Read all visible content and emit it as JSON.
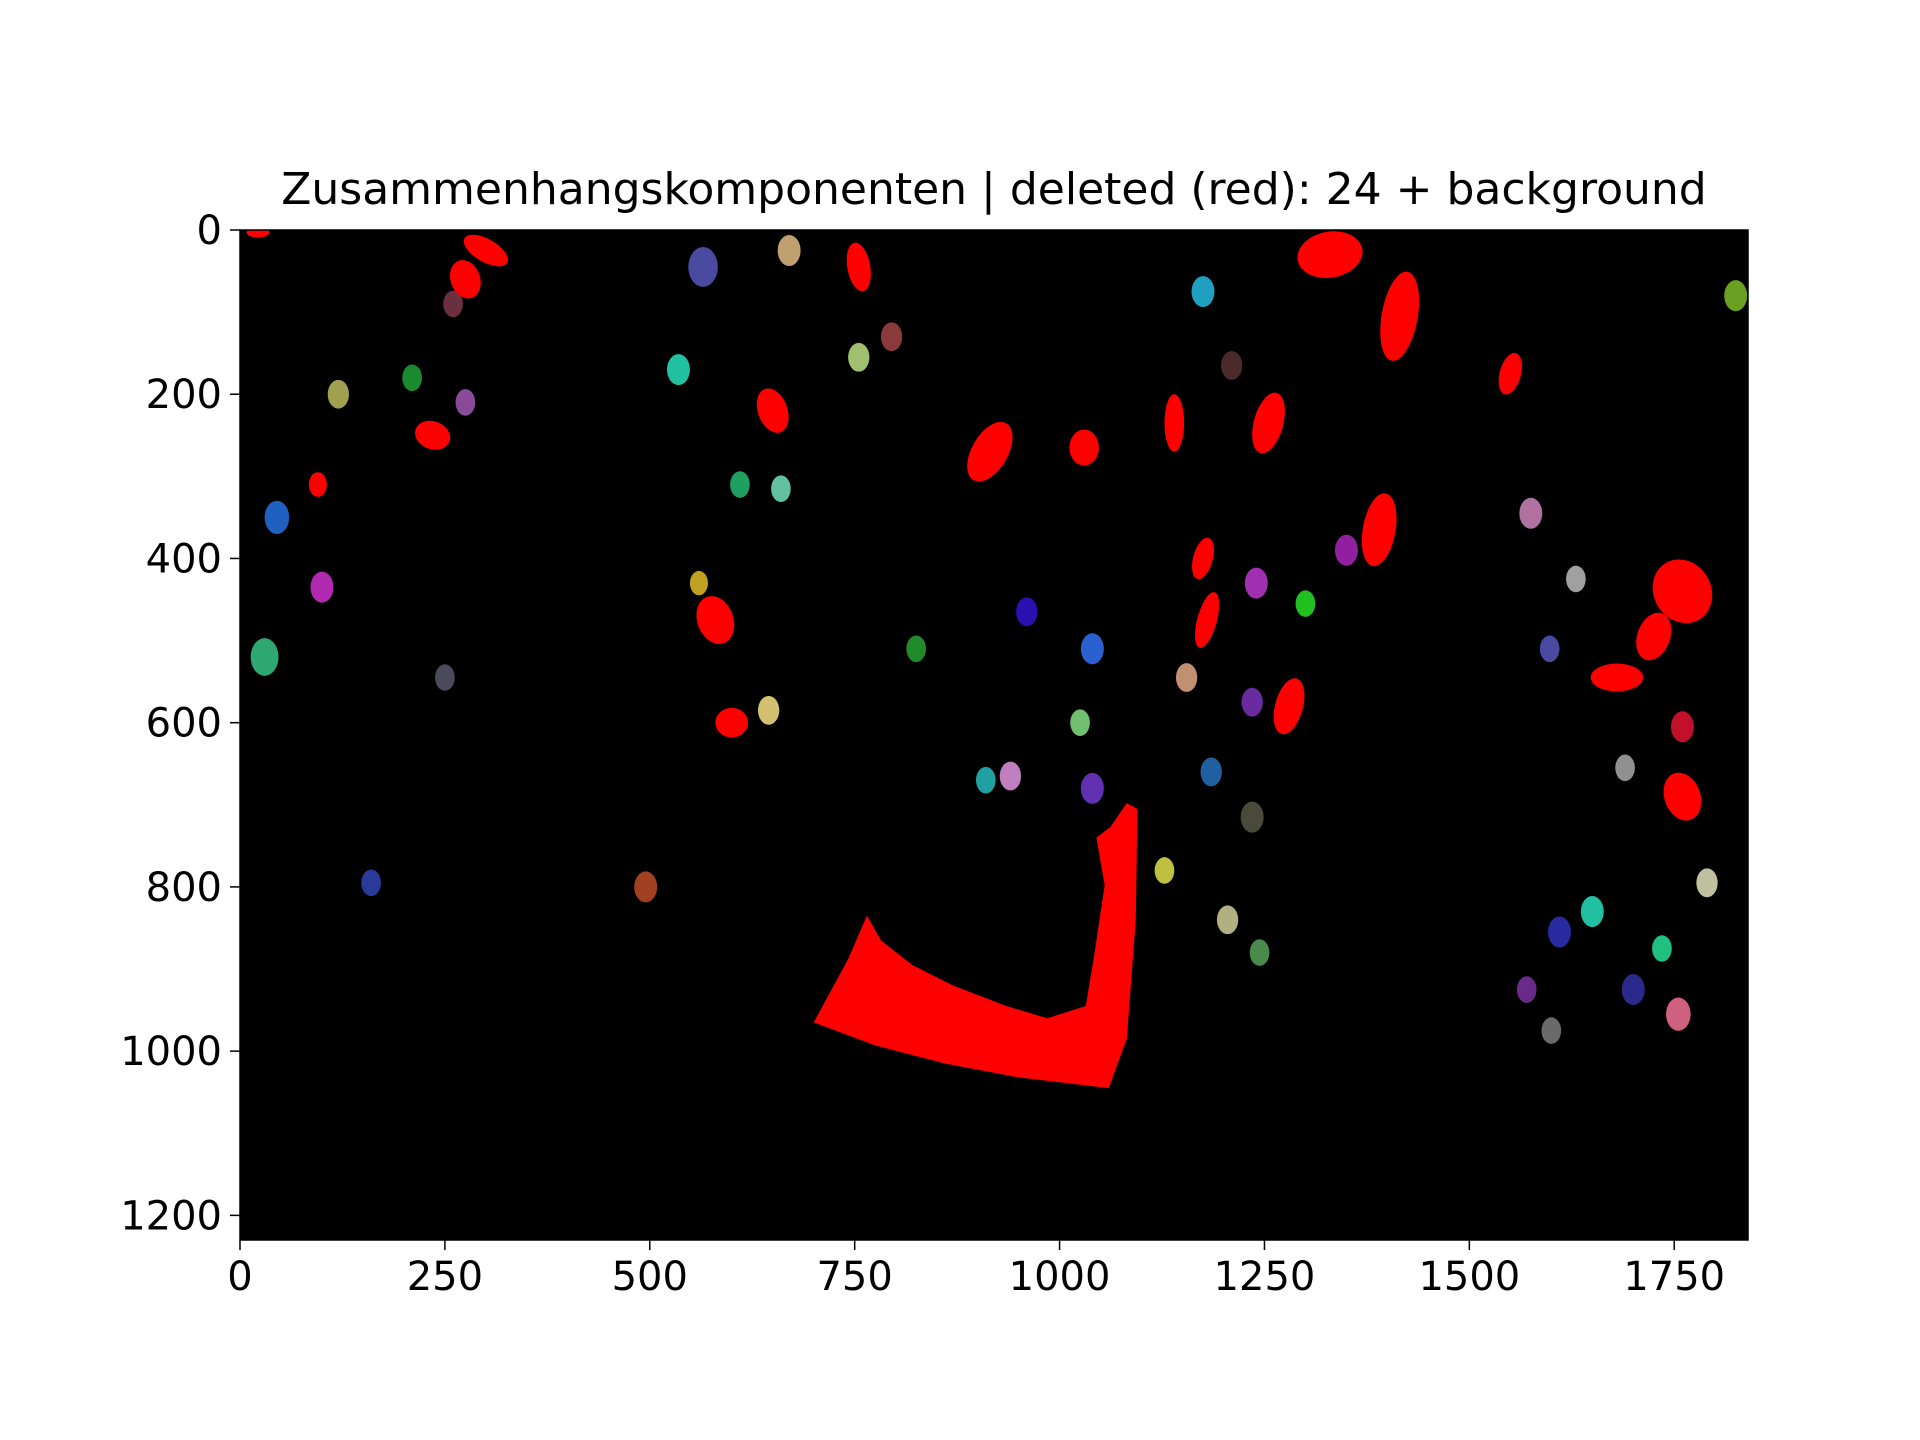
{
  "colors": {
    "figure_background": "#ffffff",
    "image_background": "#000000",
    "deleted": "#ff0000",
    "axis": "#000000"
  },
  "chart_data": {
    "type": "image",
    "title": "Zusammenhangskomponenten | deleted (red): 24 + background",
    "xlabel": "",
    "ylabel": "",
    "xlim": [
      0,
      1840
    ],
    "ylim": [
      1230,
      0
    ],
    "x_ticks": [
      0,
      250,
      500,
      750,
      1000,
      1250,
      1500,
      1750
    ],
    "y_ticks": [
      0,
      200,
      400,
      600,
      800,
      1000,
      1200
    ],
    "x_tick_labels": [
      "0",
      "250",
      "500",
      "750",
      "1000",
      "1250",
      "1500",
      "1750"
    ],
    "y_tick_labels": [
      "0",
      "200",
      "400",
      "600",
      "800",
      "1000",
      "1200"
    ],
    "grid": false,
    "legend": "none",
    "deleted_component_count": 24,
    "deleted_components": [
      {
        "cx": 22,
        "cy": 3,
        "rx": 14,
        "ry": 6,
        "angle": 0
      },
      {
        "cx": 275,
        "cy": 60,
        "rx": 18,
        "ry": 24,
        "angle": -20
      },
      {
        "cx": 300,
        "cy": 25,
        "rx": 30,
        "ry": 14,
        "angle": 30
      },
      {
        "cx": 235,
        "cy": 250,
        "rx": 22,
        "ry": 17,
        "angle": 20
      },
      {
        "cx": 755,
        "cy": 45,
        "rx": 14,
        "ry": 30,
        "angle": -10
      },
      {
        "cx": 650,
        "cy": 220,
        "rx": 18,
        "ry": 28,
        "angle": -20
      },
      {
        "cx": 915,
        "cy": 270,
        "rx": 22,
        "ry": 40,
        "angle": 30
      },
      {
        "cx": 1030,
        "cy": 265,
        "rx": 18,
        "ry": 22,
        "angle": 0
      },
      {
        "cx": 1330,
        "cy": 30,
        "rx": 40,
        "ry": 28,
        "angle": -10
      },
      {
        "cx": 1415,
        "cy": 105,
        "rx": 22,
        "ry": 55,
        "angle": 10
      },
      {
        "cx": 1550,
        "cy": 175,
        "rx": 13,
        "ry": 26,
        "angle": 15
      },
      {
        "cx": 1390,
        "cy": 365,
        "rx": 20,
        "ry": 45,
        "angle": 10
      },
      {
        "cx": 1255,
        "cy": 235,
        "rx": 18,
        "ry": 38,
        "angle": 15
      },
      {
        "cx": 1140,
        "cy": 235,
        "rx": 12,
        "ry": 35,
        "angle": 0
      },
      {
        "cx": 1175,
        "cy": 400,
        "rx": 12,
        "ry": 26,
        "angle": 15
      },
      {
        "cx": 1180,
        "cy": 475,
        "rx": 12,
        "ry": 35,
        "angle": 15
      },
      {
        "cx": 1280,
        "cy": 580,
        "rx": 17,
        "ry": 35,
        "angle": 15
      },
      {
        "cx": 1760,
        "cy": 440,
        "rx": 35,
        "ry": 40,
        "angle": -30
      },
      {
        "cx": 1725,
        "cy": 495,
        "rx": 20,
        "ry": 30,
        "angle": 20
      },
      {
        "cx": 1680,
        "cy": 545,
        "rx": 32,
        "ry": 17,
        "angle": 0
      },
      {
        "cx": 1760,
        "cy": 690,
        "rx": 22,
        "ry": 30,
        "angle": -20
      },
      {
        "cx": 95,
        "cy": 310,
        "rx": 11,
        "ry": 15,
        "angle": 0
      },
      {
        "cx": 580,
        "cy": 475,
        "rx": 22,
        "ry": 30,
        "angle": -20
      },
      {
        "cx": 600,
        "cy": 600,
        "rx": 20,
        "ry": 18,
        "angle": 0
      }
    ],
    "large_deleted_region": [
      [
        700,
        965
      ],
      [
        742,
        888
      ],
      [
        765,
        835
      ],
      [
        782,
        865
      ],
      [
        820,
        895
      ],
      [
        870,
        920
      ],
      [
        935,
        945
      ],
      [
        985,
        960
      ],
      [
        1032,
        945
      ],
      [
        1042,
        885
      ],
      [
        1055,
        798
      ],
      [
        1045,
        740
      ],
      [
        1062,
        727
      ],
      [
        1082,
        698
      ],
      [
        1095,
        705
      ],
      [
        1093,
        840
      ],
      [
        1082,
        985
      ],
      [
        1060,
        1045
      ],
      [
        950,
        1032
      ],
      [
        860,
        1015
      ],
      [
        775,
        993
      ]
    ],
    "kept_components": [
      {
        "cx": 210,
        "cy": 180,
        "r": 12,
        "color": "#1a8a2e"
      },
      {
        "cx": 120,
        "cy": 200,
        "r": 13,
        "color": "#a0a050"
      },
      {
        "cx": 45,
        "cy": 350,
        "r": 15,
        "color": "#2060c0"
      },
      {
        "cx": 275,
        "cy": 210,
        "r": 12,
        "color": "#8a4a9a"
      },
      {
        "cx": 260,
        "cy": 90,
        "r": 12,
        "color": "#6a3040"
      },
      {
        "cx": 30,
        "cy": 520,
        "r": 17,
        "color": "#2ea870"
      },
      {
        "cx": 100,
        "cy": 435,
        "r": 14,
        "color": "#b02ab0"
      },
      {
        "cx": 160,
        "cy": 795,
        "r": 12,
        "color": "#2a3a9a"
      },
      {
        "cx": 565,
        "cy": 45,
        "r": 18,
        "color": "#4a4aa0"
      },
      {
        "cx": 535,
        "cy": 170,
        "r": 14,
        "color": "#20c0a0"
      },
      {
        "cx": 670,
        "cy": 25,
        "r": 14,
        "color": "#c0a070"
      },
      {
        "cx": 795,
        "cy": 130,
        "r": 13,
        "color": "#8a3a3a"
      },
      {
        "cx": 1175,
        "cy": 75,
        "r": 14,
        "color": "#20a0c0"
      },
      {
        "cx": 1210,
        "cy": 165,
        "r": 13,
        "color": "#4a2a2a"
      },
      {
        "cx": 1350,
        "cy": 390,
        "r": 14,
        "color": "#9020a0"
      },
      {
        "cx": 1575,
        "cy": 345,
        "r": 14,
        "color": "#b070a0"
      },
      {
        "cx": 1825,
        "cy": 80,
        "r": 14,
        "color": "#6aa020"
      },
      {
        "cx": 1630,
        "cy": 425,
        "r": 12,
        "color": "#a0a0a0"
      },
      {
        "cx": 1598,
        "cy": 510,
        "r": 12,
        "color": "#4a4aa0"
      },
      {
        "cx": 1760,
        "cy": 605,
        "r": 14,
        "color": "#c0102a"
      },
      {
        "cx": 1690,
        "cy": 655,
        "r": 12,
        "color": "#909090"
      },
      {
        "cx": 1790,
        "cy": 795,
        "r": 13,
        "color": "#c0c0a0"
      },
      {
        "cx": 1700,
        "cy": 925,
        "r": 14,
        "color": "#2a2a8a"
      },
      {
        "cx": 1755,
        "cy": 955,
        "r": 15,
        "color": "#d06080"
      },
      {
        "cx": 1735,
        "cy": 875,
        "r": 12,
        "color": "#20c080"
      },
      {
        "cx": 1600,
        "cy": 975,
        "r": 12,
        "color": "#6a6a6a"
      },
      {
        "cx": 1610,
        "cy": 855,
        "r": 14,
        "color": "#2a2aa0"
      },
      {
        "cx": 1650,
        "cy": 830,
        "r": 14,
        "color": "#20c0a0"
      },
      {
        "cx": 1570,
        "cy": 925,
        "r": 12,
        "color": "#6a2a8a"
      },
      {
        "cx": 1040,
        "cy": 510,
        "r": 14,
        "color": "#2a60d0"
      },
      {
        "cx": 1155,
        "cy": 545,
        "r": 13,
        "color": "#c09070"
      },
      {
        "cx": 1235,
        "cy": 575,
        "r": 13,
        "color": "#6a2aa0"
      },
      {
        "cx": 1240,
        "cy": 430,
        "r": 14,
        "color": "#a030b0"
      },
      {
        "cx": 1300,
        "cy": 455,
        "r": 12,
        "color": "#20c020"
      },
      {
        "cx": 1185,
        "cy": 660,
        "r": 13,
        "color": "#2060a0"
      },
      {
        "cx": 1235,
        "cy": 715,
        "r": 14,
        "color": "#4a4a3a"
      },
      {
        "cx": 1025,
        "cy": 600,
        "r": 12,
        "color": "#70c070"
      },
      {
        "cx": 1128,
        "cy": 780,
        "r": 12,
        "color": "#c0c040"
      },
      {
        "cx": 1205,
        "cy": 840,
        "r": 13,
        "color": "#b0b080"
      },
      {
        "cx": 1244,
        "cy": 880,
        "r": 12,
        "color": "#4a8a4a"
      },
      {
        "cx": 940,
        "cy": 665,
        "r": 13,
        "color": "#c080c0"
      },
      {
        "cx": 910,
        "cy": 670,
        "r": 12,
        "color": "#20a0a0"
      },
      {
        "cx": 1040,
        "cy": 680,
        "r": 14,
        "color": "#6030b0"
      },
      {
        "cx": 960,
        "cy": 465,
        "r": 13,
        "color": "#2a10b0"
      },
      {
        "cx": 495,
        "cy": 800,
        "r": 14,
        "color": "#a04020"
      },
      {
        "cx": 645,
        "cy": 585,
        "r": 13,
        "color": "#d0c070"
      },
      {
        "cx": 825,
        "cy": 510,
        "r": 12,
        "color": "#208a2a"
      },
      {
        "cx": 610,
        "cy": 310,
        "r": 12,
        "color": "#20a060"
      },
      {
        "cx": 755,
        "cy": 155,
        "r": 13,
        "color": "#a0c070"
      },
      {
        "cx": 250,
        "cy": 545,
        "r": 12,
        "color": "#4a4a5a"
      },
      {
        "cx": 560,
        "cy": 430,
        "r": 11,
        "color": "#c0a020"
      },
      {
        "cx": 660,
        "cy": 315,
        "r": 12,
        "color": "#60c0a0"
      }
    ]
  }
}
